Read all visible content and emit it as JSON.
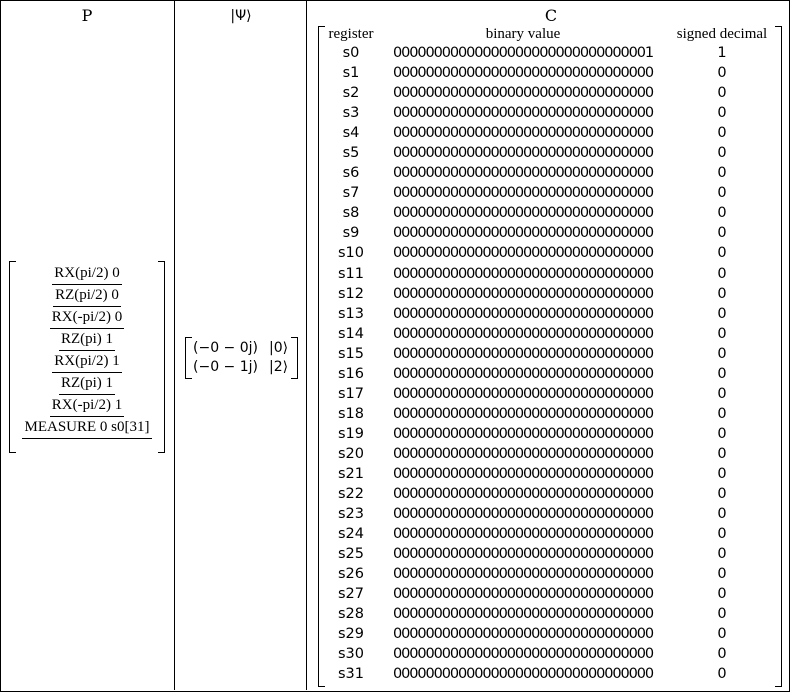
{
  "headers": {
    "program": "P",
    "state": "|Ψ⟩",
    "classical": "C"
  },
  "program": [
    "RX(pi/2) 0",
    "RZ(pi/2) 0",
    "RX(-pi/2) 0",
    "RZ(pi) 1",
    "RX(pi/2) 1",
    "RZ(pi) 1",
    "RX(-pi/2) 1",
    "MEASURE 0 s0[31]"
  ],
  "state": [
    {
      "amplitude": "(−0 − 0j)",
      "ket": "|0⟩"
    },
    {
      "amplitude": "(−0 − 1j)",
      "ket": "|2⟩"
    }
  ],
  "classical": {
    "columns": [
      "register",
      "binary value",
      "signed decimal"
    ],
    "rows": [
      {
        "register": "s0",
        "binary": "00000000000000000000000000000001",
        "decimal": "1"
      },
      {
        "register": "s1",
        "binary": "00000000000000000000000000000000",
        "decimal": "0"
      },
      {
        "register": "s2",
        "binary": "00000000000000000000000000000000",
        "decimal": "0"
      },
      {
        "register": "s3",
        "binary": "00000000000000000000000000000000",
        "decimal": "0"
      },
      {
        "register": "s4",
        "binary": "00000000000000000000000000000000",
        "decimal": "0"
      },
      {
        "register": "s5",
        "binary": "00000000000000000000000000000000",
        "decimal": "0"
      },
      {
        "register": "s6",
        "binary": "00000000000000000000000000000000",
        "decimal": "0"
      },
      {
        "register": "s7",
        "binary": "00000000000000000000000000000000",
        "decimal": "0"
      },
      {
        "register": "s8",
        "binary": "00000000000000000000000000000000",
        "decimal": "0"
      },
      {
        "register": "s9",
        "binary": "00000000000000000000000000000000",
        "decimal": "0"
      },
      {
        "register": "s10",
        "binary": "00000000000000000000000000000000",
        "decimal": "0"
      },
      {
        "register": "s11",
        "binary": "00000000000000000000000000000000",
        "decimal": "0"
      },
      {
        "register": "s12",
        "binary": "00000000000000000000000000000000",
        "decimal": "0"
      },
      {
        "register": "s13",
        "binary": "00000000000000000000000000000000",
        "decimal": "0"
      },
      {
        "register": "s14",
        "binary": "00000000000000000000000000000000",
        "decimal": "0"
      },
      {
        "register": "s15",
        "binary": "00000000000000000000000000000000",
        "decimal": "0"
      },
      {
        "register": "s16",
        "binary": "00000000000000000000000000000000",
        "decimal": "0"
      },
      {
        "register": "s17",
        "binary": "00000000000000000000000000000000",
        "decimal": "0"
      },
      {
        "register": "s18",
        "binary": "00000000000000000000000000000000",
        "decimal": "0"
      },
      {
        "register": "s19",
        "binary": "00000000000000000000000000000000",
        "decimal": "0"
      },
      {
        "register": "s20",
        "binary": "00000000000000000000000000000000",
        "decimal": "0"
      },
      {
        "register": "s21",
        "binary": "00000000000000000000000000000000",
        "decimal": "0"
      },
      {
        "register": "s22",
        "binary": "00000000000000000000000000000000",
        "decimal": "0"
      },
      {
        "register": "s23",
        "binary": "00000000000000000000000000000000",
        "decimal": "0"
      },
      {
        "register": "s24",
        "binary": "00000000000000000000000000000000",
        "decimal": "0"
      },
      {
        "register": "s25",
        "binary": "00000000000000000000000000000000",
        "decimal": "0"
      },
      {
        "register": "s26",
        "binary": "00000000000000000000000000000000",
        "decimal": "0"
      },
      {
        "register": "s27",
        "binary": "00000000000000000000000000000000",
        "decimal": "0"
      },
      {
        "register": "s28",
        "binary": "00000000000000000000000000000000",
        "decimal": "0"
      },
      {
        "register": "s29",
        "binary": "00000000000000000000000000000000",
        "decimal": "0"
      },
      {
        "register": "s30",
        "binary": "00000000000000000000000000000000",
        "decimal": "0"
      },
      {
        "register": "s31",
        "binary": "00000000000000000000000000000000",
        "decimal": "0"
      }
    ]
  }
}
